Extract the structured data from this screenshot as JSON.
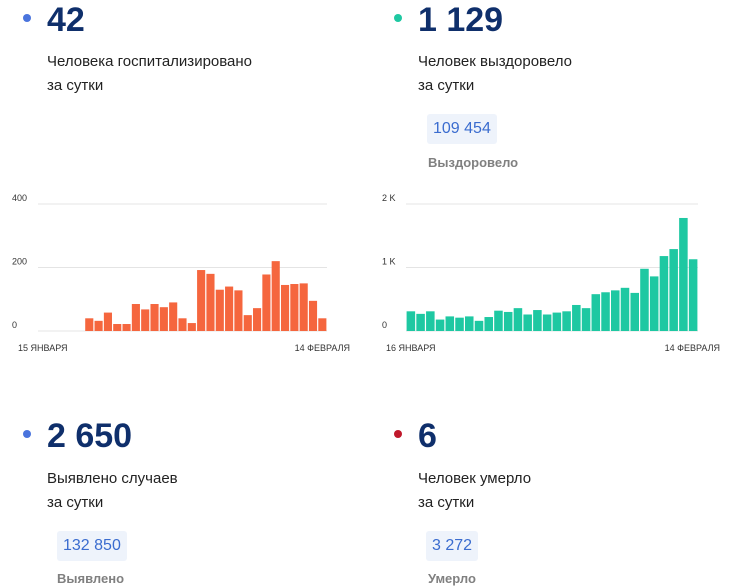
{
  "colors": {
    "hospitalized_dot": "#4a74dd",
    "recovered_dot": "#1ec8a2",
    "cases_dot": "#4a74dd",
    "deaths_dot": "#c0182b",
    "bars_hospitalized": "#f5663e",
    "bars_recovered": "#1ec8a2",
    "big_number": "#0f2f6b",
    "pill_text": "#3a6ccf",
    "pill_bg": "#eef3fb"
  },
  "stats": {
    "hospitalized": {
      "value": "42",
      "line1": "Человека госпитализировано",
      "line2": "за сутки"
    },
    "recovered": {
      "value": "1 129",
      "line1": "Человек выздоровело",
      "line2": "за сутки",
      "total": "109 454",
      "total_label": "Выздоровело"
    },
    "cases": {
      "value": "2 650",
      "line1": "Выявлено случаев",
      "line2": "за сутки",
      "total": "132 850",
      "total_label": "Выявлено"
    },
    "deaths": {
      "value": "6",
      "line1": "Человек умерло",
      "line2": "за сутки",
      "total": "3 272",
      "total_label": "Умерло"
    }
  },
  "chart_data": [
    {
      "type": "bar",
      "y_ticks": [
        "400",
        "200",
        "0"
      ],
      "x_start_label": "15 ЯНВАРЯ",
      "x_end_label": "14 ФЕВРАЛЯ",
      "ylim": [
        0,
        400
      ],
      "grid": true,
      "values": [
        0,
        0,
        0,
        0,
        0,
        40,
        32,
        58,
        22,
        22,
        85,
        68,
        85,
        75,
        90,
        40,
        25,
        192,
        180,
        130,
        140,
        128,
        50,
        72,
        178,
        220,
        145,
        148,
        150,
        95,
        40
      ]
    },
    {
      "type": "bar",
      "y_ticks": [
        "2 K",
        "1 K",
        "0"
      ],
      "x_start_label": "16 ЯНВАРЯ",
      "x_end_label": "14 ФЕВРАЛЯ",
      "ylim": [
        0,
        2000
      ],
      "grid": true,
      "values": [
        310,
        270,
        310,
        180,
        230,
        210,
        230,
        160,
        220,
        320,
        300,
        360,
        260,
        330,
        260,
        290,
        310,
        410,
        360,
        580,
        610,
        640,
        680,
        600,
        980,
        860,
        1180,
        1290,
        1780,
        1130
      ]
    }
  ]
}
